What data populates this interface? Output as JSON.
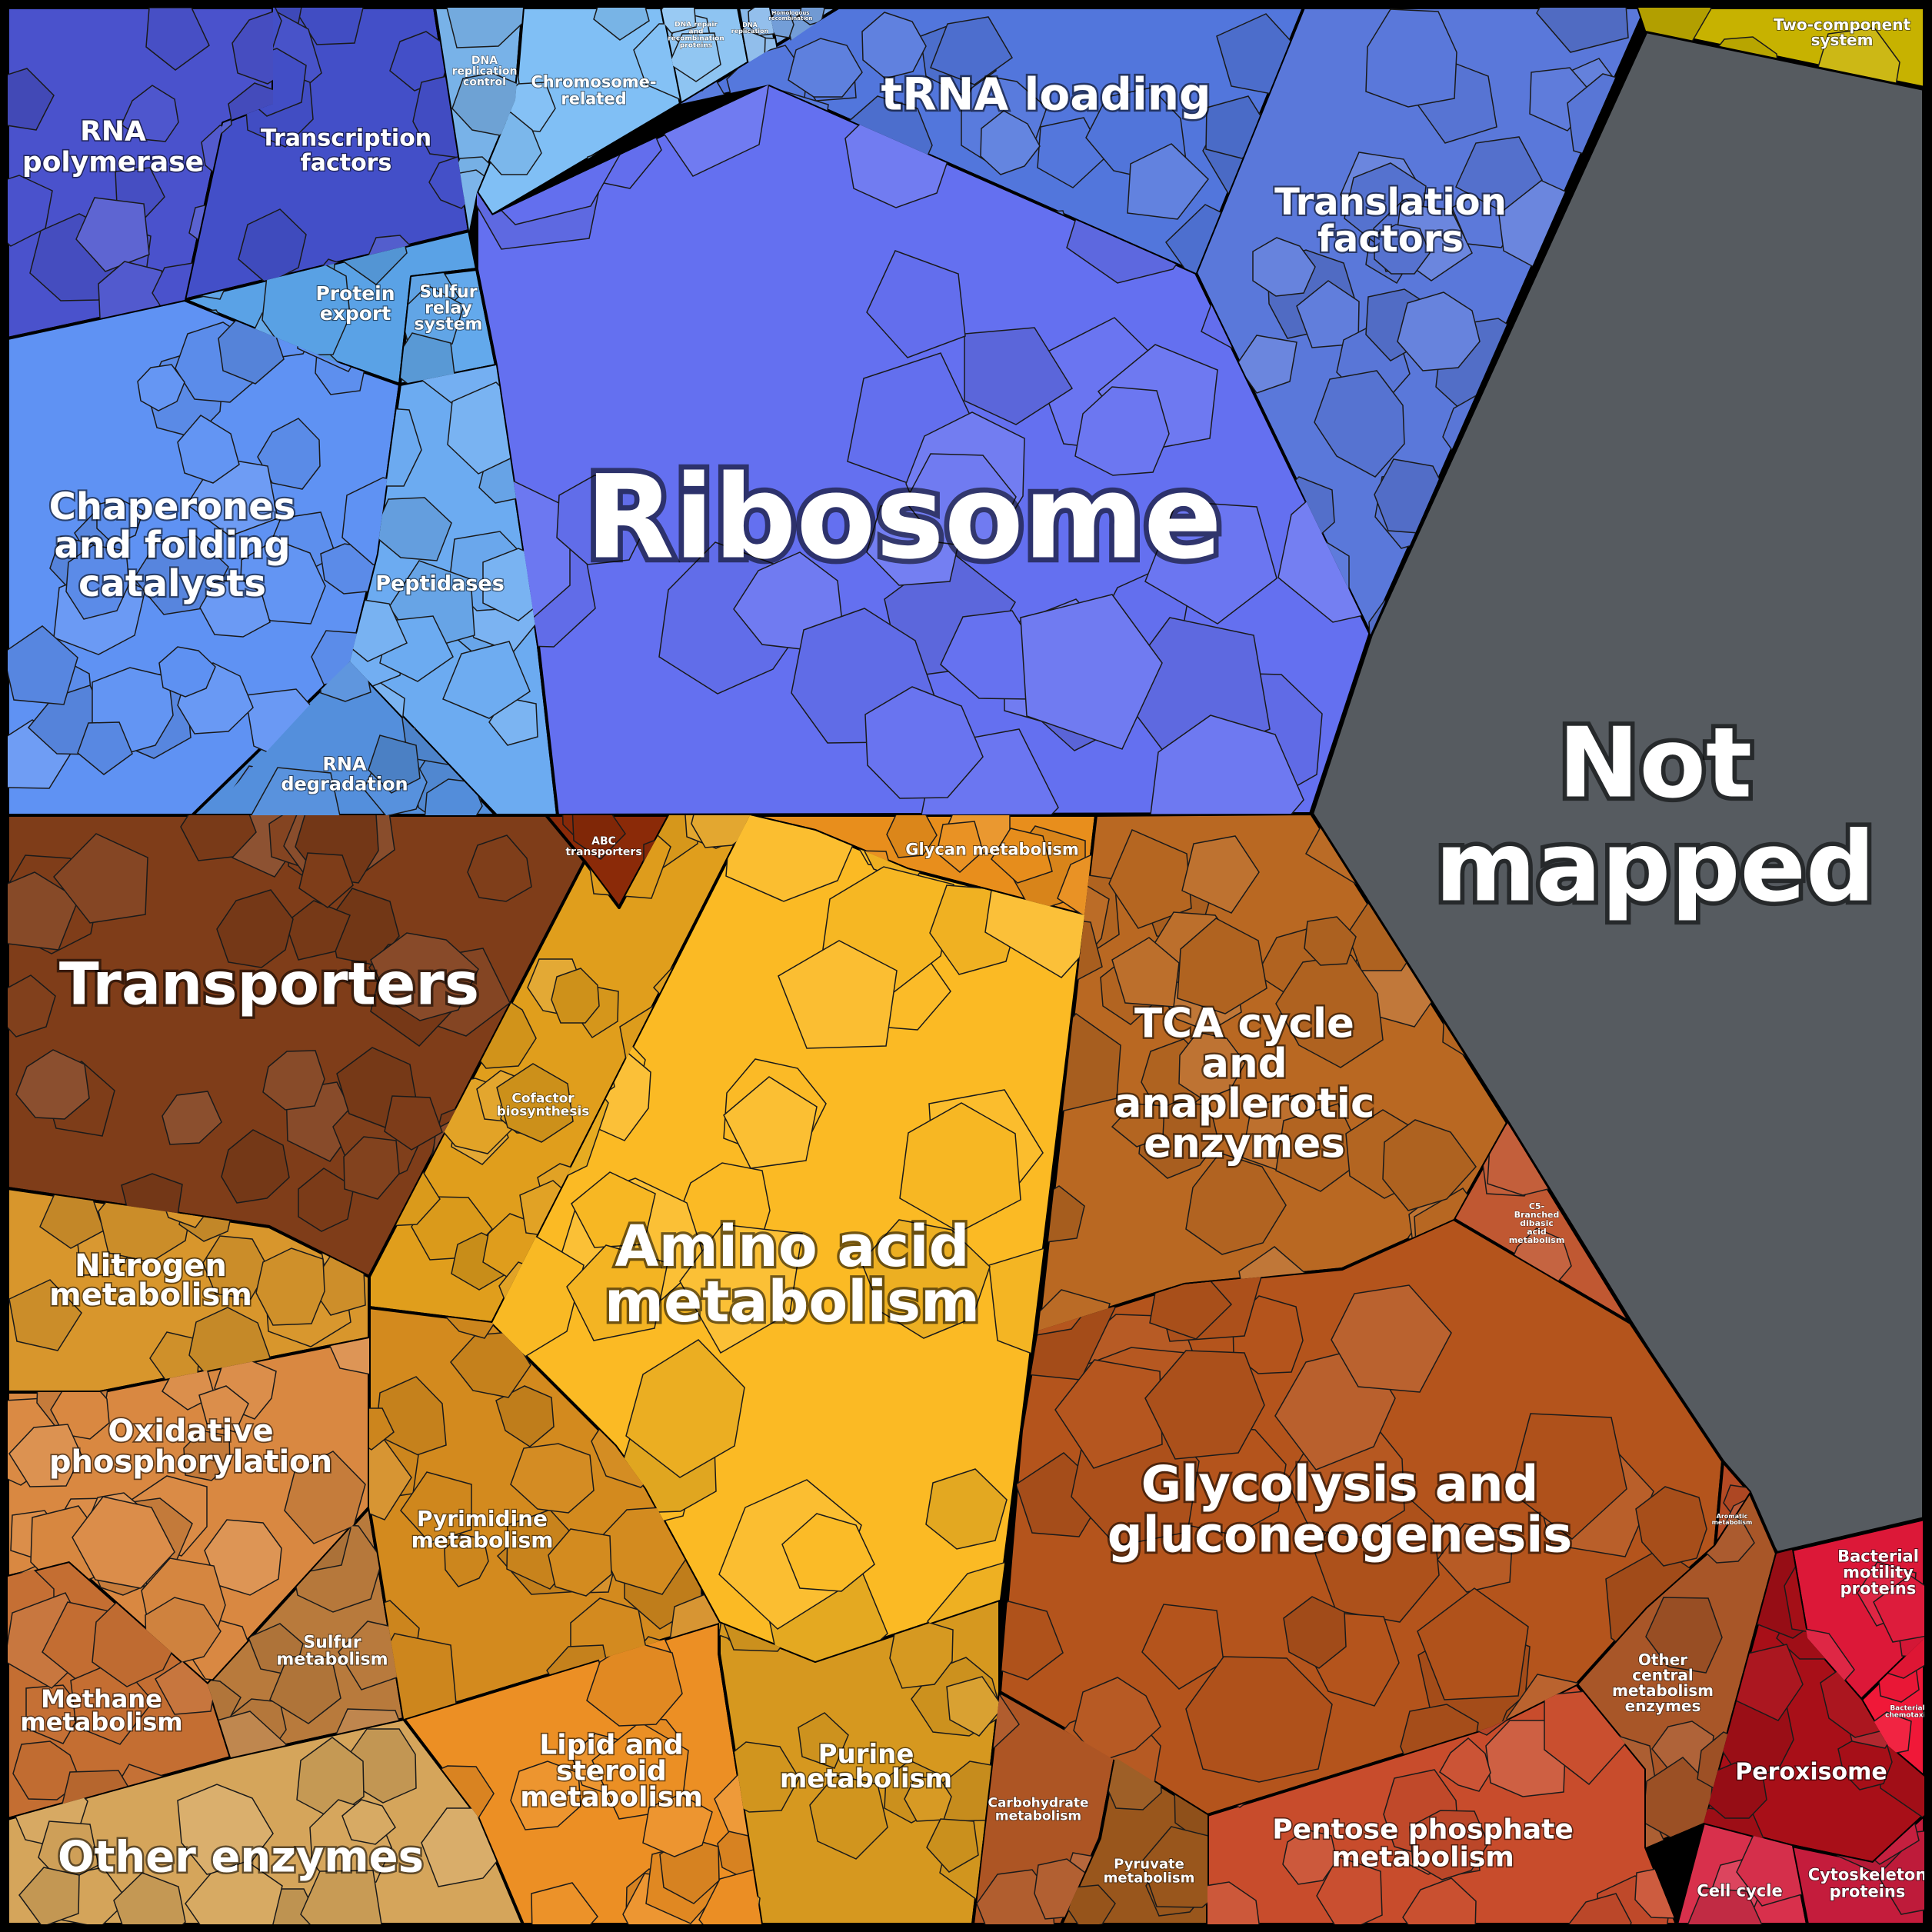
{
  "colors": {
    "background": "#000000",
    "not_mapped": "#565b60",
    "label_text": "#ffffff",
    "cell_border": "#1a1a1a"
  },
  "regions": {
    "rna_polymerase": {
      "label": "RNA\npolymerase",
      "color": "#4a52cc"
    },
    "transcription_factors": {
      "label": "Transcription\nfactors",
      "color": "#434fc8"
    },
    "dna_replication_control": {
      "label": "DNA\nreplication\ncontrol",
      "color": "#78b2e8"
    },
    "chromosome_related": {
      "label": "Chromosome-\nrelated",
      "color": "#80bff5"
    },
    "dna_repair": {
      "label": "DNA repair\nand\nrecombination\nproteins",
      "color": "#8ec4f2"
    },
    "dna_replication": {
      "label": "DNA\nreplication",
      "color": "#89b9ea"
    },
    "homologous_recombination": {
      "label": "Homologous\nrecombination",
      "color": "#7ba8e6"
    },
    "trna_loading": {
      "label": "tRNA loading",
      "color": "#5276dc"
    },
    "translation_factors": {
      "label": "Translation\nfactors",
      "color": "#5a78da"
    },
    "two_component": {
      "label": "Two-component\nsystem",
      "color": "#c7b200"
    },
    "protein_export": {
      "label": "Protein\nexport",
      "color": "#5aa2e6"
    },
    "sulfur_relay": {
      "label": "Sulfur\nrelay\nsystem",
      "color": "#63a9ec"
    },
    "chaperones": {
      "label": "Chaperones\nand folding\ncatalysts",
      "color": "#5f92f3"
    },
    "peptidases": {
      "label": "Peptidases",
      "color": "#6cabf1"
    },
    "rna_degradation": {
      "label": "RNA\ndegradation",
      "color": "#548fdc"
    },
    "ribosome": {
      "label": "Ribosome",
      "color": "#6470f0"
    },
    "not_mapped": {
      "label": "Not\nmapped",
      "color": "#565b60"
    },
    "transporters": {
      "label": "Transporters",
      "color": "#7f3d19"
    },
    "abc_transporters": {
      "label": "ABC\ntransporters",
      "color": "#8b2a08"
    },
    "cofactor_biosynthesis": {
      "label": "Cofactor\nbiosynthesis",
      "color": "#e09e1c"
    },
    "glycan_metabolism": {
      "label": "Glycan metabolism",
      "color": "#e88e1c"
    },
    "amino_acid_metabolism": {
      "label": "Amino acid\nmetabolism",
      "color": "#fbba24"
    },
    "tca_cycle": {
      "label": "TCA cycle\nand\nanaplerotic\nenzymes",
      "color": "#b96822"
    },
    "c5_branched": {
      "label": "C5-\nBranched\ndibasic\nacid\nmetabolism",
      "color": "#c05832"
    },
    "nitrogen_metabolism": {
      "label": "Nitrogen\nmetabolism",
      "color": "#d8962c"
    },
    "oxidative_phosphorylation": {
      "label": "Oxidative\nphosphorylation",
      "color": "#d98841"
    },
    "methane_metabolism": {
      "label": "Methane\nmetabolism",
      "color": "#c46e32"
    },
    "sulfur_metabolism": {
      "label": "Sulfur\nmetabolism",
      "color": "#b87a3c"
    },
    "other_enzymes": {
      "label": "Other enzymes",
      "color": "#d5a55b"
    },
    "pyrimidine_metabolism": {
      "label": "Pyrimidine\nmetabolism",
      "color": "#d38a1e"
    },
    "lipid_steroid": {
      "label": "Lipid and\nsteroid\nmetabolism",
      "color": "#ec8f24"
    },
    "purine_metabolism": {
      "label": "Purine\nmetabolism",
      "color": "#d6981f"
    },
    "glycolysis": {
      "label": "Glycolysis and\ngluconeogenesis",
      "color": "#b4541c"
    },
    "aromatic_metabolism": {
      "label": "Aromatic\nmetabolism",
      "color": "#b44a24"
    },
    "other_central": {
      "label": "Other\ncentral\nmetabolism\nenzymes",
      "color": "#a85628"
    },
    "carbohydrate_metabolism": {
      "label": "Carbohydrate\nmetabolism",
      "color": "#ad5524"
    },
    "pyruvate_metabolism": {
      "label": "Pyruvate\nmetabolism",
      "color": "#99561c"
    },
    "pentose_phosphate": {
      "label": "Pentose phosphate\nmetabolism",
      "color": "#c84c2c"
    },
    "bacterial_motility": {
      "label": "Bacterial\nmotility\nproteins",
      "color": "#dc1838"
    },
    "bacterial_chemotaxis": {
      "label": "Bacterial\nchemotaxis",
      "color": "#f01838"
    },
    "peroxisome": {
      "label": "Peroxisome",
      "color": "#a80f18"
    },
    "cell_cycle": {
      "label": "Cell cycle",
      "color": "#d8304c"
    },
    "cytoskeleton": {
      "label": "Cytoskeleton\nproteins",
      "color": "#c41c3c"
    }
  }
}
